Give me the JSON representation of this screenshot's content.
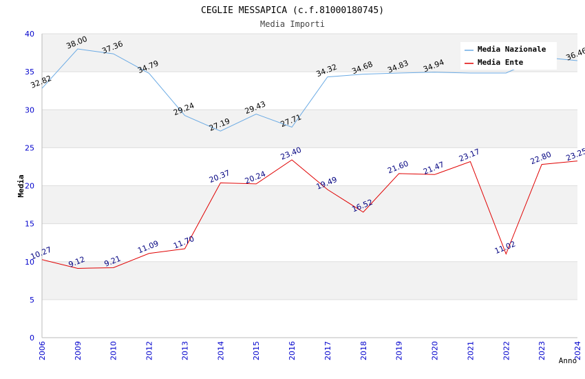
{
  "chart_data": {
    "type": "line",
    "title": "CEGLIE MESSAPICA (c.f.81000180745)",
    "subtitle": "Media Importi",
    "xlabel": "Anno",
    "ylabel": "Media",
    "categories": [
      "2006",
      "2009",
      "2010",
      "2012",
      "2013",
      "2014",
      "2015",
      "2016",
      "2017",
      "2018",
      "2019",
      "2020",
      "2021",
      "2022",
      "2023",
      "2024"
    ],
    "ylim": [
      0,
      40
    ],
    "yticks": [
      "0",
      "5",
      "10",
      "15",
      "20",
      "25",
      "30",
      "35",
      "40"
    ],
    "grid": "horizontal bands",
    "legend_position": "top-right",
    "series": [
      {
        "name": "Media Nazionale",
        "color": "#6aaae4",
        "label_color": "#000000",
        "values": [
          32.82,
          38.0,
          37.36,
          34.79,
          29.24,
          27.19,
          29.43,
          27.71,
          34.32,
          34.68,
          34.83,
          34.94,
          34.83,
          34.83,
          36.9,
          36.46
        ],
        "labels": [
          "32.82",
          "38.00",
          "37.36",
          "34.79",
          "29.24",
          "27.19",
          "29.43",
          "27.71",
          "34.32",
          "34.68",
          "34.83",
          "34.94",
          "",
          "",
          "",
          "36.46"
        ]
      },
      {
        "name": "Media Ente",
        "color": "#e00000",
        "label_color": "#000080",
        "values": [
          10.27,
          9.12,
          9.21,
          11.09,
          11.7,
          20.37,
          20.24,
          23.4,
          19.49,
          16.52,
          21.6,
          21.47,
          23.17,
          11.02,
          22.8,
          23.25
        ],
        "labels": [
          "10.27",
          "9.12",
          "9.21",
          "11.09",
          "11.70",
          "20.37",
          "20.24",
          "23.40",
          "19.49",
          "16.52",
          "21.60",
          "21.47",
          "23.17",
          "11.02",
          "22.80",
          "23.25"
        ]
      }
    ]
  },
  "colors": {
    "axis_text": "#0000cc",
    "band": "#f2f2f2",
    "grid_line": "#dddddd"
  }
}
